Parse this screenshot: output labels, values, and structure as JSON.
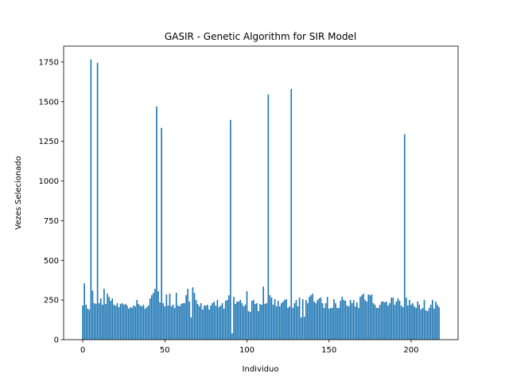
{
  "chart_data": {
    "type": "bar",
    "title": "GASIR - Genetic Algorithm for SIR Model",
    "xlabel": "Individuo",
    "ylabel": "Vezes Selecionado",
    "color": "#1f77b4",
    "x": [
      0,
      1,
      2,
      3,
      4,
      5,
      6,
      7,
      8,
      9,
      10,
      11,
      12,
      13,
      14,
      15,
      16,
      17,
      18,
      19,
      20,
      21,
      22,
      23,
      24,
      25,
      26,
      27,
      28,
      29,
      30,
      31,
      32,
      33,
      34,
      35,
      36,
      37,
      38,
      39,
      40,
      41,
      42,
      43,
      44,
      45,
      46,
      47,
      48,
      49,
      50,
      51,
      52,
      53,
      54,
      55,
      56,
      57,
      58,
      59,
      60,
      61,
      62,
      63,
      64,
      65,
      66,
      67,
      68,
      69,
      70,
      71,
      72,
      73,
      74,
      75,
      76,
      77,
      78,
      79,
      80,
      81,
      82,
      83,
      84,
      85,
      86,
      87,
      88,
      89,
      90,
      91,
      92,
      93,
      94,
      95,
      96,
      97,
      98,
      99,
      100,
      101,
      102,
      103,
      104,
      105,
      106,
      107,
      108,
      109,
      110,
      111,
      112,
      113,
      114,
      115,
      116,
      117,
      118,
      119,
      120,
      121,
      122,
      123,
      124,
      125,
      126,
      127,
      128,
      129,
      130,
      131,
      132,
      133,
      134,
      135,
      136,
      137,
      138,
      139,
      140,
      141,
      142,
      143,
      144,
      145,
      146,
      147,
      148,
      149,
      150,
      151,
      152,
      153,
      154,
      155,
      156,
      157,
      158,
      159,
      160,
      161,
      162,
      163,
      164,
      165,
      166,
      167,
      168,
      169,
      170,
      171,
      172,
      173,
      174,
      175,
      176,
      177,
      178,
      179,
      180,
      181,
      182,
      183,
      184,
      185,
      186,
      187,
      188,
      189,
      190,
      191,
      192,
      193,
      194,
      195,
      196,
      197,
      198,
      199,
      200,
      201,
      202,
      203,
      204,
      205,
      206,
      207,
      208,
      209,
      210,
      211,
      212,
      213,
      214,
      215,
      216,
      217
    ],
    "values": [
      215,
      355,
      220,
      195,
      190,
      1765,
      310,
      230,
      225,
      1745,
      230,
      260,
      220,
      320,
      225,
      290,
      270,
      245,
      260,
      220,
      215,
      230,
      205,
      225,
      230,
      220,
      225,
      215,
      195,
      205,
      200,
      215,
      210,
      250,
      225,
      215,
      210,
      220,
      195,
      205,
      215,
      260,
      280,
      295,
      320,
      1470,
      305,
      235,
      1335,
      230,
      210,
      285,
      215,
      290,
      210,
      220,
      200,
      295,
      215,
      210,
      225,
      230,
      230,
      280,
      320,
      240,
      140,
      330,
      295,
      250,
      225,
      210,
      230,
      190,
      215,
      215,
      220,
      190,
      215,
      230,
      240,
      215,
      250,
      205,
      215,
      230,
      195,
      245,
      250,
      280,
      1385,
      40,
      270,
      225,
      240,
      240,
      250,
      230,
      210,
      220,
      305,
      180,
      175,
      245,
      250,
      225,
      230,
      180,
      225,
      220,
      335,
      225,
      230,
      1545,
      280,
      265,
      220,
      255,
      210,
      245,
      210,
      230,
      240,
      250,
      255,
      200,
      210,
      1580,
      200,
      230,
      250,
      210,
      265,
      140,
      255,
      145,
      250,
      230,
      270,
      280,
      290,
      240,
      230,
      250,
      260,
      265,
      230,
      200,
      230,
      270,
      195,
      200,
      200,
      255,
      230,
      200,
      200,
      245,
      270,
      250,
      245,
      215,
      210,
      250,
      230,
      250,
      210,
      235,
      200,
      270,
      280,
      290,
      250,
      240,
      285,
      280,
      285,
      230,
      220,
      200,
      200,
      220,
      240,
      240,
      235,
      240,
      215,
      230,
      265,
      265,
      220,
      240,
      260,
      245,
      215,
      205,
      1295,
      265,
      215,
      250,
      220,
      230,
      210,
      200,
      240,
      220,
      190,
      200,
      250,
      185,
      180,
      200,
      220,
      250,
      195,
      240,
      220,
      205
    ],
    "xlim": [
      -11.65,
      228.6
    ],
    "xticks": [
      0,
      50,
      100,
      150,
      200
    ],
    "ylim": [
      0,
      1850
    ],
    "yticks": [
      0,
      250,
      500,
      750,
      1000,
      1250,
      1500,
      1750
    ]
  }
}
